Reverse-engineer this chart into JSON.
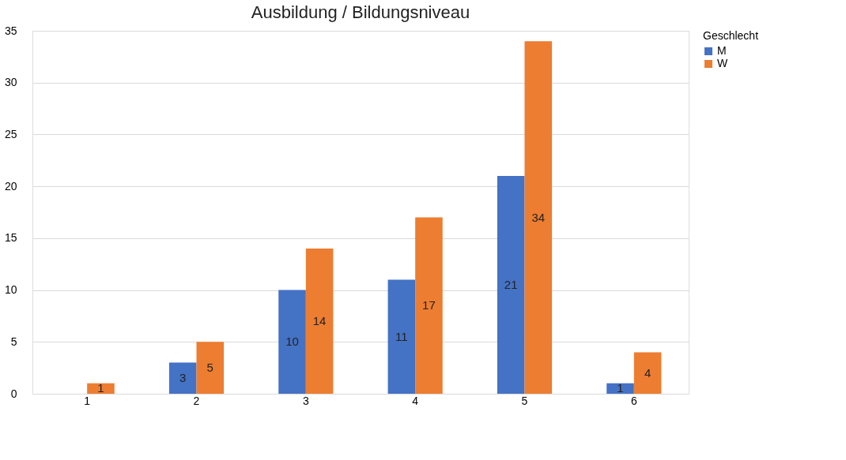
{
  "chart_data": {
    "type": "bar",
    "title": "Ausbildung / Bildungsniveau",
    "categories": [
      "1",
      "2",
      "3",
      "4",
      "5",
      "6"
    ],
    "series": [
      {
        "name": "M",
        "color": "#4472c4",
        "values": [
          null,
          3,
          10,
          11,
          21,
          1
        ]
      },
      {
        "name": "W",
        "color": "#ed7d31",
        "values": [
          1,
          5,
          14,
          17,
          34,
          4
        ]
      }
    ],
    "ylim": [
      0,
      35
    ],
    "yticks": [
      0,
      5,
      10,
      15,
      20,
      25,
      30,
      35
    ],
    "grid": "y",
    "legend": "right",
    "legend_title": "Geschlecht",
    "data_labels": true
  }
}
